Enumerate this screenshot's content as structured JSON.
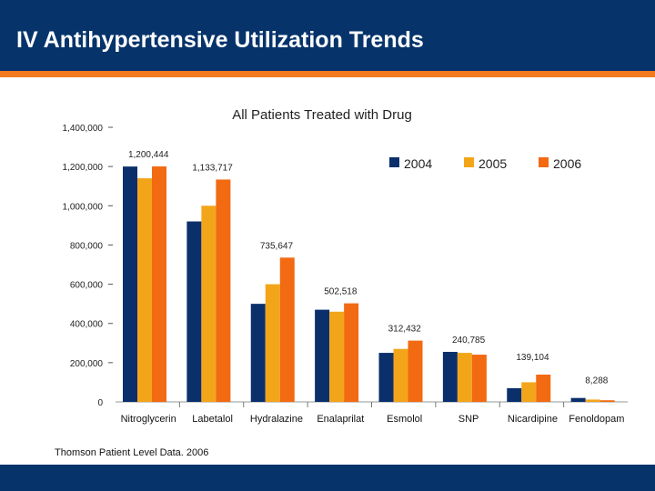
{
  "header": {
    "title": "IV Antihypertensive Utilization Trends"
  },
  "footer": {
    "source": "Thomson Patient Level Data. 2006"
  },
  "colors": {
    "header_bg": "#05336a",
    "accent": "#f47a1f",
    "s2004": "#0b2f6b",
    "s2005": "#f3a51a",
    "s2006": "#f26a12"
  },
  "chart_data": {
    "type": "bar",
    "title": "All Patients Treated with Drug",
    "xlabel": "",
    "ylabel": "",
    "ylim": [
      0,
      1400000
    ],
    "yticks": [
      0,
      200000,
      400000,
      600000,
      800000,
      1000000,
      1200000,
      1400000
    ],
    "ytick_labels": [
      "0",
      "200,000",
      "400,000",
      "600,000",
      "800,000",
      "1,000,000",
      "1,200,000",
      "1,400,000"
    ],
    "legend_position": "top-right",
    "categories": [
      "Nitroglycerin",
      "Labetalol",
      "Hydralazine",
      "Enalaprilat",
      "Esmolol",
      "SNP",
      "Nicardipine",
      "Fenoldopam"
    ],
    "series": [
      {
        "name": "2004",
        "values": [
          1200000,
          920000,
          500000,
          470000,
          250000,
          255000,
          70000,
          20000
        ]
      },
      {
        "name": "2005",
        "values": [
          1140000,
          1000000,
          600000,
          460000,
          270000,
          250000,
          100000,
          12000
        ]
      },
      {
        "name": "2006",
        "values": [
          1200444,
          1133717,
          735647,
          502518,
          312432,
          240785,
          139104,
          8288
        ]
      }
    ],
    "data_labels": [
      "1,200,444",
      "1,133,717",
      "735,647",
      "502,518",
      "312,432",
      "240,785",
      "139,104",
      "8,288"
    ]
  }
}
